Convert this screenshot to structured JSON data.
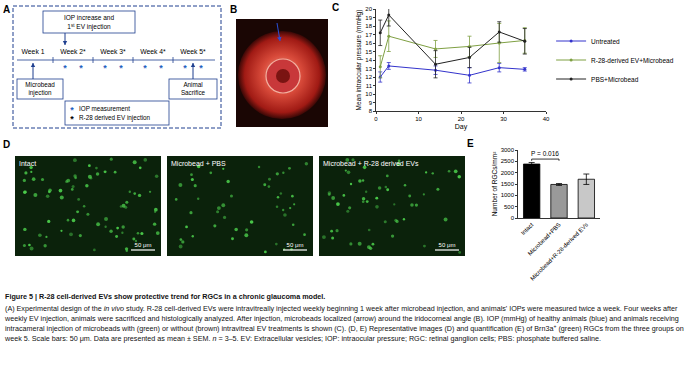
{
  "panel_labels": [
    "A",
    "B",
    "C",
    "D",
    "E"
  ],
  "panel_A": {
    "top_box": [
      [
        {
          "text": "IOP increase and"
        }
      ],
      [
        {
          "text": "1"
        },
        {
          "text": "st",
          "style": "sup"
        },
        {
          "text": " EV injection"
        }
      ]
    ],
    "weeks": [
      {
        "label": "Week 1",
        "iop_marks": 0
      },
      {
        "label": "Week 2*",
        "iop_marks": 2
      },
      {
        "label": "Week 3*",
        "iop_marks": 2
      },
      {
        "label": "Week 4*",
        "iop_marks": 2
      },
      {
        "label": "Week 5*",
        "iop_marks": 2
      }
    ],
    "left_box": "Microbead injection",
    "right_box": "Animal Sacrifice",
    "legend": [
      {
        "symbol": "*",
        "color": "#1f5fbf",
        "text": "IOP measurement"
      },
      {
        "symbol": "*",
        "color": "#000000",
        "text": "R-28 derived EV injection"
      }
    ]
  },
  "chart_data": [
    {
      "type": "line",
      "x": [
        1,
        3,
        14,
        22,
        29,
        35
      ],
      "xlabel": "Day",
      "ylabel": "Mean intraocular pressure (mmHg)",
      "xlim": [
        0,
        40
      ],
      "xticks": [
        0,
        10,
        20,
        30,
        40
      ],
      "ylim": [
        8,
        20
      ],
      "yticks": [
        8,
        9,
        10,
        11,
        12,
        13,
        14,
        15,
        16,
        17,
        18,
        19,
        20
      ],
      "grid": false,
      "legend": "right",
      "marker": "circle",
      "line_style": "solid",
      "series": [
        {
          "name": "Untreated",
          "color": "#3333cc",
          "values": [
            12.0,
            13.3,
            12.8,
            12.2,
            13.1,
            12.9
          ],
          "errors": [
            0.6,
            0.4,
            0.5,
            0.9,
            0.5,
            0.2
          ]
        },
        {
          "name": "R-28-derived EV+Microbead",
          "color": "#7fa043",
          "values": [
            13.2,
            16.8,
            15.3,
            15.6,
            16.0,
            16.3
          ],
          "errors": [
            1.3,
            1.8,
            1.0,
            1.2,
            2.3,
            1.5
          ]
        },
        {
          "name": "PBS+Microbead",
          "color": "#222222",
          "values": [
            17.2,
            19.3,
            13.5,
            14.3,
            17.3,
            16.2
          ],
          "errors": [
            1.5,
            1.3,
            1.6,
            1.2,
            1.2,
            1.5
          ]
        }
      ]
    },
    {
      "type": "bar",
      "categories": [
        "Intact",
        "Microbead+PBS",
        "Microbead+R-28-derived EVs"
      ],
      "values": [
        2380,
        1480,
        1710
      ],
      "errors": [
        70,
        40,
        230
      ],
      "colors": [
        "#000000",
        "#999999",
        "#c8c8c8"
      ],
      "ylabel": "Number of RGCs/mm²",
      "ylim": [
        0,
        3000
      ],
      "yticks": [
        0,
        500,
        1000,
        1500,
        2000,
        2500,
        3000
      ],
      "grid": false,
      "annotations": [
        {
          "text": "P = 0.016",
          "between": [
            0,
            1
          ]
        }
      ]
    }
  ],
  "panel_D": {
    "images": [
      {
        "label": "Intact",
        "scale_bar": "50 μm"
      },
      {
        "label": "Microbead + PBS",
        "scale_bar": "50 μm"
      },
      {
        "label": "Microbead + R-28 derived EVs",
        "scale_bar": "50 μm"
      }
    ]
  },
  "caption": {
    "title": [
      {
        "text": "Figure 5 | R-28 cell-derived EVs show protective trend for RGCs in a chronic glaucoma model.",
        "style": "bold"
      }
    ],
    "body": [
      {
        "text": "(A) Experimental design of the "
      },
      {
        "text": "in vivo",
        "style": "italic"
      },
      {
        "text": " study. R-28 cell-derived EVs were intravitreally injected weekly beginning 1 week after microbead injection, and animals' IOPs were measured twice a week. Four weeks after weekly EV injection, animals were sacrificed and histologically analyzed. After injection, microbeads localized (arrow) around the iridocorneal angle (B). IOP (mmHg) of healthy animals (blue) and animals receiving intracameral injection of microbeads with (green) or without (brown) intravitreal EV treatments is shown (C). (D, E) Representative images (D) and quantification (E) of Brn3a"
      },
      {
        "text": "+",
        "style": "sup"
      },
      {
        "text": " (green) RGCs from the three groups on week 5. Scale bars: 50 μm. Data are presented as mean ± SEM. "
      },
      {
        "text": "n",
        "style": "italic"
      },
      {
        "text": " = 3–5. EV: Extracellular vesicles; IOP: intraocular pressure; RGC: retinal ganglion cells; PBS: phosphate buffered saline."
      }
    ]
  }
}
